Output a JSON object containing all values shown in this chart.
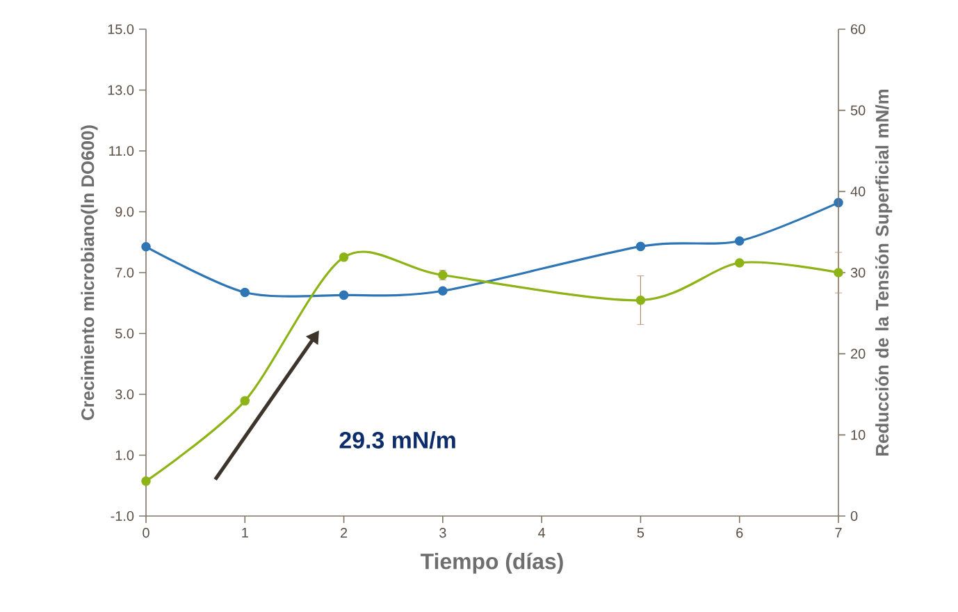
{
  "chart_data": {
    "type": "line",
    "xlabel": "Tiempo (días)",
    "ylabel": "Crecimiento microbiano(ln DO600)",
    "y2label": "Reducción de la Tensión Superficial mN/m",
    "x": [
      0,
      1,
      2,
      3,
      5,
      6,
      7
    ],
    "series": [
      {
        "color": "#2e75b6",
        "values": [
          7.85,
          6.35,
          6.26,
          6.4,
          7.86,
          8.04,
          9.3
        ]
      },
      {
        "color": "#8db317",
        "axis": "y2",
        "values": [
          4.3,
          14.2,
          31.9,
          29.7,
          26.6,
          31.2,
          30.0
        ],
        "errors": [
          null,
          null,
          null,
          0.6,
          3,
          null,
          2.5
        ]
      }
    ],
    "xlim": [
      0,
      7
    ],
    "xticks": [
      0,
      1,
      2,
      3,
      4,
      5,
      6,
      7
    ],
    "ylim": [
      -1,
      15
    ],
    "yticks": [
      {
        "value": -1,
        "label": "-1.0"
      },
      {
        "value": 1,
        "label": "1.0"
      },
      {
        "value": 3,
        "label": "3.0"
      },
      {
        "value": 5,
        "label": "5.0"
      },
      {
        "value": 7,
        "label": "7.0"
      },
      {
        "value": 9,
        "label": "9.0"
      },
      {
        "value": 11,
        "label": "11.0"
      },
      {
        "value": 13,
        "label": "13.0"
      },
      {
        "value": 15,
        "label": "15.0"
      }
    ],
    "y2lim": [
      0,
      60
    ],
    "y2ticks": [
      0,
      10,
      20,
      30,
      40,
      50,
      60
    ],
    "marker": "circle",
    "grid": false,
    "annotations": [
      "29.3 mN/m"
    ]
  }
}
